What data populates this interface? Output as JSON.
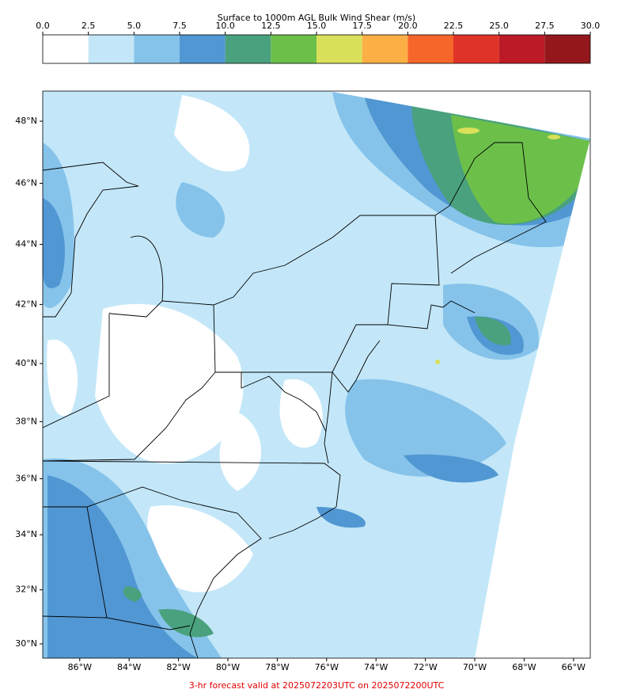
{
  "title": "Surface to 1000m AGL Bulk Wind Shear (m/s)",
  "colorbar": {
    "lim": [
      0,
      30
    ],
    "ticks": [
      {
        "value": 0,
        "label": "0.0"
      },
      {
        "value": 2.5,
        "label": "2.5"
      },
      {
        "value": 5,
        "label": "5.0"
      },
      {
        "value": 7.5,
        "label": "7.5"
      },
      {
        "value": 10,
        "label": "10.0"
      },
      {
        "value": 12.5,
        "label": "12.5"
      },
      {
        "value": 15,
        "label": "15.0"
      },
      {
        "value": 17.5,
        "label": "17.5"
      },
      {
        "value": 20,
        "label": "20.0"
      },
      {
        "value": 22.5,
        "label": "22.5"
      },
      {
        "value": 25,
        "label": "25.0"
      },
      {
        "value": 27.5,
        "label": "27.5"
      },
      {
        "value": 30,
        "label": "30.0"
      }
    ],
    "colors": [
      "#ffffff",
      "#c3e7f8",
      "#86c3ea",
      "#5197d3",
      "#4aa17e",
      "#6cc04a",
      "#d9e05a",
      "#fbaf45",
      "#f6662b",
      "#e03328",
      "#bd1a27",
      "#94181b"
    ]
  },
  "map": {
    "lat_ticks": [
      {
        "value": 48,
        "label": "48°N"
      },
      {
        "value": 46,
        "label": "46°N"
      },
      {
        "value": 44,
        "label": "44°N"
      },
      {
        "value": 42,
        "label": "42°N"
      },
      {
        "value": 40,
        "label": "40°N"
      },
      {
        "value": 38,
        "label": "38°N"
      },
      {
        "value": 36,
        "label": "36°N"
      },
      {
        "value": 34,
        "label": "34°N"
      },
      {
        "value": 32,
        "label": "32°N"
      },
      {
        "value": 30,
        "label": "30°N"
      }
    ],
    "lon_ticks": [
      {
        "value": -86,
        "label": "86°W"
      },
      {
        "value": -84,
        "label": "84°W"
      },
      {
        "value": -82,
        "label": "82°W"
      },
      {
        "value": -80,
        "label": "80°W"
      },
      {
        "value": -78,
        "label": "78°W"
      },
      {
        "value": -76,
        "label": "76°W"
      },
      {
        "value": -74,
        "label": "74°W"
      },
      {
        "value": -72,
        "label": "72°W"
      },
      {
        "value": -70,
        "label": "70°W"
      },
      {
        "value": -68,
        "label": "68°W"
      },
      {
        "value": -66,
        "label": "66°W"
      }
    ]
  },
  "footer": "3-hr forecast valid at 2025072203UTC on 2025072200UTC"
}
